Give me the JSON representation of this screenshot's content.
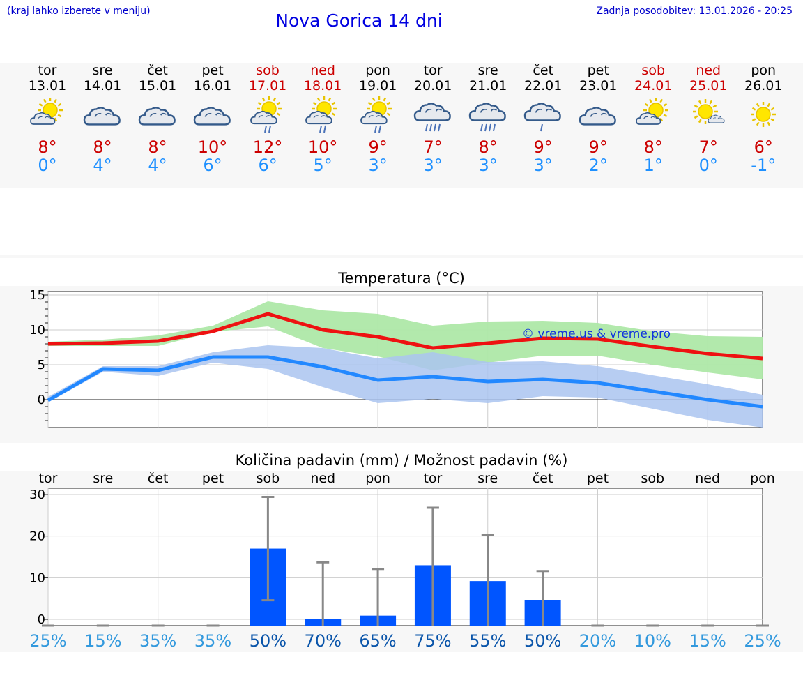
{
  "header": {
    "hint": "(kraj lahko izberete v meniju)",
    "title": "Nova Gorica 14 dni",
    "updated": "Zadnja posodobitev: 13.01.2026 - 20:25"
  },
  "days": [
    {
      "name": "tor",
      "date": "13.01",
      "weekend": false,
      "icon": "sun-cloud-icon",
      "tmax": "8°",
      "tmin": "0°"
    },
    {
      "name": "sre",
      "date": "14.01",
      "weekend": false,
      "icon": "cloud-icon",
      "tmax": "8°",
      "tmin": "4°"
    },
    {
      "name": "čet",
      "date": "15.01",
      "weekend": false,
      "icon": "cloud-icon",
      "tmax": "8°",
      "tmin": "4°"
    },
    {
      "name": "pet",
      "date": "16.01",
      "weekend": false,
      "icon": "cloud-icon",
      "tmax": "10°",
      "tmin": "6°"
    },
    {
      "name": "sob",
      "date": "17.01",
      "weekend": true,
      "icon": "sun-cloud-rain-icon",
      "tmax": "12°",
      "tmin": "6°"
    },
    {
      "name": "ned",
      "date": "18.01",
      "weekend": true,
      "icon": "sun-cloud-rain-icon",
      "tmax": "10°",
      "tmin": "5°"
    },
    {
      "name": "pon",
      "date": "19.01",
      "weekend": false,
      "icon": "sun-cloud-rain-icon",
      "tmax": "9°",
      "tmin": "3°"
    },
    {
      "name": "tor",
      "date": "20.01",
      "weekend": false,
      "icon": "cloud-heavy-rain-icon",
      "tmax": "7°",
      "tmin": "3°"
    },
    {
      "name": "sre",
      "date": "21.01",
      "weekend": false,
      "icon": "cloud-heavy-rain-icon",
      "tmax": "8°",
      "tmin": "3°"
    },
    {
      "name": "čet",
      "date": "22.01",
      "weekend": false,
      "icon": "cloud-rain-icon",
      "tmax": "9°",
      "tmin": "3°"
    },
    {
      "name": "pet",
      "date": "23.01",
      "weekend": false,
      "icon": "cloud-icon",
      "tmax": "9°",
      "tmin": "2°"
    },
    {
      "name": "sob",
      "date": "24.01",
      "weekend": true,
      "icon": "sun-cloud-icon",
      "tmax": "8°",
      "tmin": "1°"
    },
    {
      "name": "ned",
      "date": "25.01",
      "weekend": true,
      "icon": "sun-small-cloud-icon",
      "tmax": "7°",
      "tmin": "0°"
    },
    {
      "name": "pon",
      "date": "26.01",
      "weekend": false,
      "icon": "sun-icon",
      "tmax": "6°",
      "tmin": "-1°"
    }
  ],
  "colors": {
    "max_line": "#ee1111",
    "min_line": "#2288ff",
    "max_band": "#aee8a8",
    "min_band": "#aac4f0",
    "bar": "#0055ff",
    "errbar": "#888888",
    "pct_light": "#3399dd",
    "pct_dark": "#0a55aa",
    "weekend": "#cc0000"
  },
  "chart_data": [
    {
      "type": "line",
      "title": "Temperatura (°C)",
      "watermark": "© vreme.us & vreme.pro",
      "ylim": [
        -4,
        15.5
      ],
      "yticks": [
        0,
        5,
        10,
        15
      ],
      "x": [
        0,
        1,
        2,
        3,
        4,
        5,
        6,
        7,
        8,
        9,
        10,
        11,
        12,
        13
      ],
      "series": [
        {
          "name": "max",
          "values": [
            8,
            8.1,
            8.4,
            9.8,
            12.3,
            10,
            9,
            7.4,
            8.1,
            8.8,
            8.7,
            7.6,
            6.6,
            5.9
          ],
          "band_low": [
            7.7,
            7.7,
            7.7,
            9.7,
            10.5,
            7.4,
            6.2,
            4.2,
            5.3,
            6.3,
            6.3,
            5.0,
            3.9,
            2.9
          ],
          "band_high": [
            8.3,
            8.6,
            9.2,
            10.6,
            14.1,
            12.8,
            12.3,
            10.6,
            11.2,
            11.3,
            11.0,
            9.8,
            9.1,
            9.0
          ]
        },
        {
          "name": "min",
          "values": [
            -0.1,
            4.4,
            4.2,
            6.1,
            6.1,
            4.7,
            2.8,
            3.3,
            2.6,
            2.9,
            2.4,
            1.2,
            0,
            -1.0
          ],
          "band_low": [
            -0.4,
            4.0,
            3.4,
            5.3,
            4.4,
            1.8,
            -0.5,
            0.1,
            -0.5,
            0.5,
            0.3,
            -1.3,
            -2.9,
            -4.0
          ],
          "band_high": [
            0.4,
            4.8,
            4.8,
            6.8,
            7.8,
            7.4,
            5.9,
            6.8,
            5.4,
            5.5,
            4.8,
            3.5,
            2.2,
            0.7
          ]
        }
      ]
    },
    {
      "type": "bar",
      "title": "Količina padavin (mm) / Možnost padavin (%)",
      "ylim": [
        -1.5,
        31.5
      ],
      "yticks": [
        0,
        10,
        20,
        30
      ],
      "categories": [
        "tor",
        "sre",
        "čet",
        "pet",
        "sob",
        "ned",
        "pon",
        "tor",
        "sre",
        "čet",
        "pet",
        "sob",
        "ned",
        "pon"
      ],
      "values": [
        0,
        0,
        0,
        0,
        17,
        0.1,
        0.9,
        13,
        9.2,
        4.6,
        0,
        0,
        0,
        0
      ],
      "err_low": [
        0,
        0,
        0,
        0,
        4.6,
        0,
        0,
        0,
        0,
        0,
        0,
        0,
        0,
        0
      ],
      "err_high": [
        0,
        0,
        0,
        0,
        29.4,
        13.7,
        12.1,
        26.8,
        20.2,
        11.6,
        0,
        0,
        0,
        0
      ],
      "probability": [
        "25%",
        "15%",
        "35%",
        "35%",
        "50%",
        "70%",
        "65%",
        "75%",
        "55%",
        "50%",
        "20%",
        "10%",
        "15%",
        "25%"
      ]
    }
  ]
}
